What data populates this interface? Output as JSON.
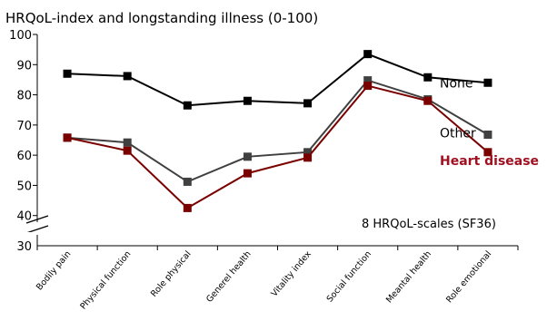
{
  "chart_data": {
    "type": "line",
    "title": "HRQoL-index and longstanding illness (0-100)",
    "categories": [
      "Bodily pain",
      "Physical function",
      "Role physical",
      "Generel health",
      "Vitality index",
      "Social function",
      "Meantal health",
      "Role emotional"
    ],
    "y_ticks": [
      "100",
      "90",
      "80",
      "70",
      "60",
      "50",
      "40",
      "30"
    ],
    "ylim": [
      30,
      100
    ],
    "axis_break": true,
    "note": "8 HRQoL-scales (SF36)",
    "legend_placement": "right",
    "series": [
      {
        "name": "None",
        "color": "#000000",
        "label_color": "#000000",
        "bold": false,
        "values": [
          87,
          86.2,
          76.5,
          78,
          77.2,
          93.5,
          85.8,
          84
        ]
      },
      {
        "name": "Other",
        "color": "#404040",
        "label_color": "#000000",
        "bold": false,
        "values": [
          65.8,
          64.2,
          51.2,
          59.5,
          61,
          84.8,
          78.5,
          66.8
        ]
      },
      {
        "name": "Heart disease",
        "color": "#7a0000",
        "label_color": "#a01020",
        "bold": true,
        "values": [
          65.8,
          61.5,
          42.5,
          54,
          59.2,
          83,
          78,
          61
        ]
      }
    ]
  }
}
